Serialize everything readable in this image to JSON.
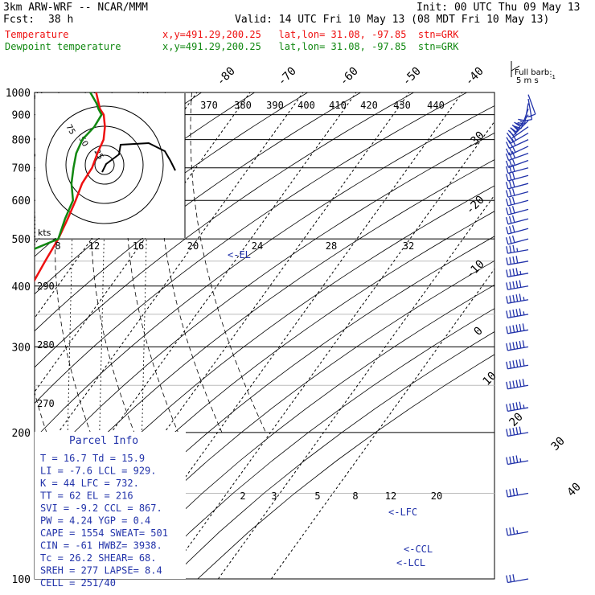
{
  "header": {
    "model": "3km ARW-WRF -- NCAR/MMM",
    "init": "Init: 00 UTC Thu 09 May 13",
    "fcst_label": "Fcst:",
    "fcst_hours": "38 h",
    "valid": "Valid: 14 UTC Fri 10 May 13 (08 MDT Fri 10 May 13)",
    "temp_label": "Temperature",
    "dewpt_label": "Dewpoint temperature",
    "temp_loc": "x,y=491.29,200.25   lat,lon= 31.08, -97.85  stn=GRK",
    "dewpt_loc": "x,y=491.29,200.25   lat,lon= 31.08, -97.85  stn=GRK"
  },
  "colors": {
    "temperature": "#ee1111",
    "dewpoint": "#118811",
    "barb": "#2233aa",
    "hodograph": "#000000"
  },
  "wind_legend": {
    "line1": "Full barb:",
    "line2": "5 m s",
    "superscript": "-1"
  },
  "parcel_info": {
    "title": "Parcel Info",
    "rows": [
      "T  =   16.7  Td =  15.9",
      "LI =   -7.6  LCL =  929.",
      "K  =     44  LFC =  732.",
      "TT =     62  EL  =   216",
      "SVI =  -9.2  CCL =  867.",
      "PW =   4.24  YGP =   0.4",
      "CAPE =  1554  SWEAT=  501",
      "CIN  =   -61  HWBZ= 3938.",
      "Tc  =  26.2  SHEAR=  68.",
      "SREH =   277  LAPSE=  8.4",
      "CELL = 251/40"
    ]
  },
  "level_labels": {
    "el": "<-EL",
    "lfc": "<-LFC",
    "ccl": "<-CCL",
    "lcl": "<-LCL"
  },
  "hodograph": {
    "units_label": "kts",
    "ring_labels": [
      "75",
      "50",
      "25"
    ],
    "speed_labels": [
      "8",
      "12",
      "16",
      "20",
      "24",
      "28",
      "32"
    ]
  },
  "chart_data": {
    "type": "line",
    "title": "",
    "pressure_levels_hpa": [
      "100",
      "200",
      "300",
      "400",
      "500",
      "600",
      "700",
      "800",
      "900",
      "1000"
    ],
    "isotherm_labels_c": [
      "-80",
      "-70",
      "-60",
      "-50",
      "-40",
      "-30",
      "-20",
      "-10",
      "0",
      "10",
      "20",
      "30",
      "40"
    ],
    "theta_labels_k": [
      "370",
      "380",
      "390",
      "400",
      "410",
      "420",
      "430",
      "440"
    ],
    "theta_left_labels_k": [
      "290",
      "280",
      "270"
    ],
    "mixing_ratio_labels": [
      "2",
      "3",
      "5",
      "8",
      "12",
      "20"
    ],
    "series": [
      {
        "name": "Temperature",
        "points": [
          [
            1000,
            17
          ],
          [
            950,
            16
          ],
          [
            925,
            15.5
          ],
          [
            900,
            15.4
          ],
          [
            850,
            14
          ],
          [
            800,
            12
          ],
          [
            750,
            9
          ],
          [
            700,
            6
          ],
          [
            650,
            2
          ],
          [
            600,
            -1.5
          ],
          [
            550,
            -5.5
          ],
          [
            500,
            -10
          ],
          [
            450,
            -15.5
          ],
          [
            400,
            -21.5
          ],
          [
            350,
            -28
          ],
          [
            300,
            -35
          ],
          [
            250,
            -44
          ],
          [
            200,
            -54
          ],
          [
            175,
            -60
          ],
          [
            150,
            -62
          ],
          [
            125,
            -65
          ],
          [
            100,
            -69
          ]
        ]
      },
      {
        "name": "Dewpoint temperature",
        "points": [
          [
            1000,
            15.9
          ],
          [
            950,
            15.6
          ],
          [
            925,
            15.2
          ],
          [
            900,
            15
          ],
          [
            850,
            12
          ],
          [
            800,
            8
          ],
          [
            750,
            5
          ],
          [
            700,
            2.5
          ],
          [
            650,
            0
          ],
          [
            600,
            -2
          ],
          [
            550,
            -6
          ],
          [
            500,
            -10
          ],
          [
            450,
            -23
          ],
          [
            400,
            -40
          ],
          [
            350,
            -55
          ],
          [
            325,
            -62
          ],
          [
            300,
            -60
          ],
          [
            250,
            -70
          ],
          [
            200,
            -75
          ],
          [
            150,
            -83
          ],
          [
            125,
            -85
          ],
          [
            100,
            -87
          ]
        ]
      }
    ],
    "wind_profile_kts": {
      "levels_hpa": [
        990,
        970,
        950,
        925,
        900,
        875,
        850,
        825,
        800,
        775,
        750,
        725,
        700,
        675,
        650,
        625,
        600,
        575,
        550,
        525,
        500,
        475,
        450,
        425,
        400,
        375,
        350,
        325,
        300,
        275,
        250,
        225,
        200,
        175,
        150,
        125,
        100
      ],
      "direction_deg": [
        160,
        170,
        190,
        200,
        215,
        225,
        235,
        240,
        245,
        245,
        250,
        250,
        255,
        255,
        255,
        255,
        255,
        255,
        255,
        255,
        255,
        260,
        260,
        260,
        260,
        260,
        260,
        260,
        260,
        260,
        260,
        260,
        260,
        260,
        260,
        260,
        260
      ],
      "speed_kts": [
        10,
        15,
        20,
        25,
        30,
        32,
        33,
        33,
        32,
        30,
        30,
        30,
        30,
        30,
        30,
        30,
        30,
        30,
        30,
        30,
        30,
        35,
        40,
        45,
        50,
        55,
        55,
        60,
        60,
        60,
        60,
        55,
        50,
        45,
        40,
        35,
        30
      ]
    }
  }
}
